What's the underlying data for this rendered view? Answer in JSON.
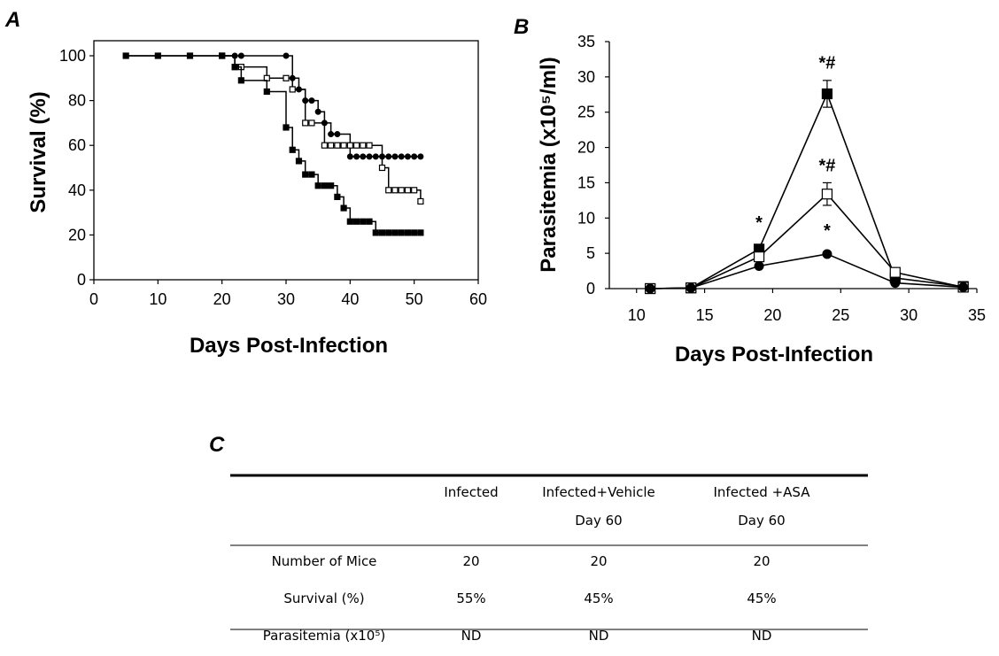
{
  "chart_data": [
    {
      "panel": "A",
      "type": "line",
      "step": true,
      "ylabel": "Survival (%)",
      "xlabel": "Days Post-Infection",
      "xlim": [
        0,
        60
      ],
      "ylim": [
        0,
        100
      ],
      "xticks": [
        "0",
        "10",
        "20",
        "30",
        "40",
        "50",
        "60"
      ],
      "yticks": [
        "0",
        "20",
        "40",
        "60",
        "80",
        "100"
      ],
      "series": [
        {
          "marker": "filled-circle",
          "x": [
            5,
            10,
            15,
            20,
            22,
            23,
            30,
            31,
            32,
            33,
            34,
            35,
            36,
            37,
            38,
            40,
            41,
            42,
            43,
            44,
            45,
            46,
            47,
            48,
            49,
            50,
            51
          ],
          "y": [
            100,
            100,
            100,
            100,
            100,
            100,
            100,
            90,
            85,
            80,
            80,
            75,
            70,
            65,
            65,
            55,
            55,
            55,
            55,
            55,
            55,
            55,
            55,
            55,
            55,
            55,
            55
          ]
        },
        {
          "marker": "open-square",
          "x": [
            20,
            22,
            23,
            27,
            30,
            31,
            33,
            34,
            36,
            37,
            38,
            39,
            40,
            41,
            42,
            43,
            45,
            46,
            47,
            48,
            49,
            50,
            51
          ],
          "y": [
            100,
            95,
            95,
            90,
            90,
            85,
            70,
            70,
            60,
            60,
            60,
            60,
            60,
            60,
            60,
            60,
            50,
            40,
            40,
            40,
            40,
            40,
            35
          ]
        },
        {
          "marker": "filled-square",
          "x": [
            5,
            10,
            15,
            20,
            22,
            23,
            27,
            30,
            31,
            32,
            33,
            34,
            35,
            36,
            37,
            38,
            39,
            40,
            41,
            42,
            43,
            44,
            45,
            46,
            47,
            48,
            49,
            50,
            51
          ],
          "y": [
            100,
            100,
            100,
            100,
            95,
            89,
            84,
            68,
            58,
            53,
            47,
            47,
            42,
            42,
            42,
            37,
            32,
            26,
            26,
            26,
            26,
            21,
            21,
            21,
            21,
            21,
            21,
            21,
            21
          ]
        }
      ]
    },
    {
      "panel": "B",
      "type": "line",
      "ylabel": "Parasitemia (x10⁵/ml)",
      "xlabel": "Days Post-Infection",
      "xlim": [
        8,
        35
      ],
      "ylim": [
        0,
        35
      ],
      "xticks": [
        "10",
        "15",
        "20",
        "25",
        "30",
        "35"
      ],
      "yticks": [
        "0",
        "5",
        "10",
        "15",
        "20",
        "25",
        "30",
        "35"
      ],
      "series": [
        {
          "marker": "filled-square",
          "x": [
            11,
            14,
            19,
            24,
            29,
            34
          ],
          "y": [
            0,
            0.1,
            5.6,
            27.6,
            1.5,
            0.3
          ],
          "err": [
            0,
            0,
            0,
            1.9,
            0,
            0
          ]
        },
        {
          "marker": "open-square",
          "x": [
            11,
            14,
            19,
            24,
            29,
            34
          ],
          "y": [
            0,
            0.1,
            4.5,
            13.4,
            2.3,
            0.2
          ],
          "err": [
            0,
            0,
            0,
            1.6,
            0,
            0
          ]
        },
        {
          "marker": "filled-circle",
          "x": [
            11,
            14,
            19,
            24,
            29,
            34
          ],
          "y": [
            0,
            0.1,
            3.2,
            4.9,
            0.8,
            0.2
          ],
          "err": [
            0,
            0,
            0,
            0,
            0,
            0
          ]
        }
      ],
      "annotations": [
        {
          "text": "*",
          "x": 19,
          "y": 8.5
        },
        {
          "text": "*#",
          "x": 24,
          "y": 31.2
        },
        {
          "text": "*#",
          "x": 24,
          "y": 16.6
        },
        {
          "text": "*",
          "x": 24,
          "y": 7.4
        }
      ]
    },
    {
      "panel": "C",
      "type": "table",
      "columns": [
        "",
        "Infected",
        "Infected+Vehicle\nDay 60",
        "Infected +ASA\nDay 60"
      ],
      "rows": [
        [
          "Number of Mice",
          "20",
          "20",
          "20"
        ],
        [
          "Survival (%)",
          "55%",
          "45%",
          "45%"
        ],
        [
          "Parasitemia (x10⁵)",
          "ND",
          "ND",
          "ND"
        ]
      ]
    }
  ]
}
